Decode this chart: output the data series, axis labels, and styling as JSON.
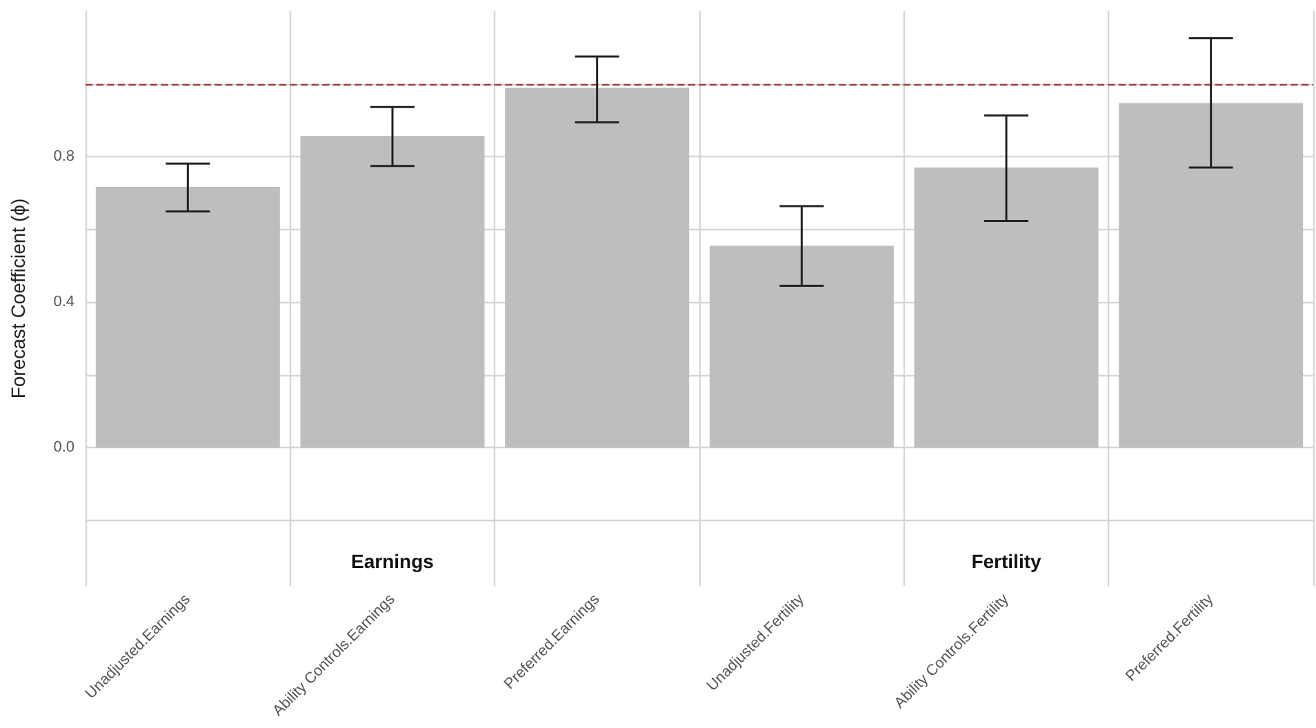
{
  "chart_data": {
    "type": "bar",
    "ylabel": "Forecast Coefficient (ϕ)",
    "categories": [
      "Unadjusted.Earnings",
      "Ability Controls.Earnings",
      "Preferred.Earnings",
      "Unadjusted.Fertility",
      "Ability Controls.Fertility",
      "Preferred.Fertility"
    ],
    "values": [
      0.717,
      0.857,
      0.989,
      0.555,
      0.77,
      0.947
    ],
    "errors": [
      [
        0.649,
        0.781
      ],
      [
        0.774,
        0.936
      ],
      [
        0.894,
        1.075
      ],
      [
        0.445,
        0.664
      ],
      [
        0.623,
        0.913
      ],
      [
        0.77,
        1.125
      ]
    ],
    "color": "#bebebe",
    "ylim": [
      -0.38,
      1.2
    ],
    "yticks": [
      {
        "value": -0.2,
        "label": null
      },
      {
        "value": 0,
        "label": "0.0"
      },
      {
        "value": 0.2,
        "label": null
      },
      0.4,
      {
        "value": 0.6,
        "label": null
      },
      0.8,
      {
        "value": 1.0,
        "label": null
      }
    ],
    "ref_lines": [
      {
        "axis": "y",
        "value": 1.0,
        "label": null,
        "color": "#a0403a",
        "line_style": "dashed"
      }
    ],
    "annotations": [
      "Earnings",
      "Fertility"
    ],
    "grid": true
  }
}
